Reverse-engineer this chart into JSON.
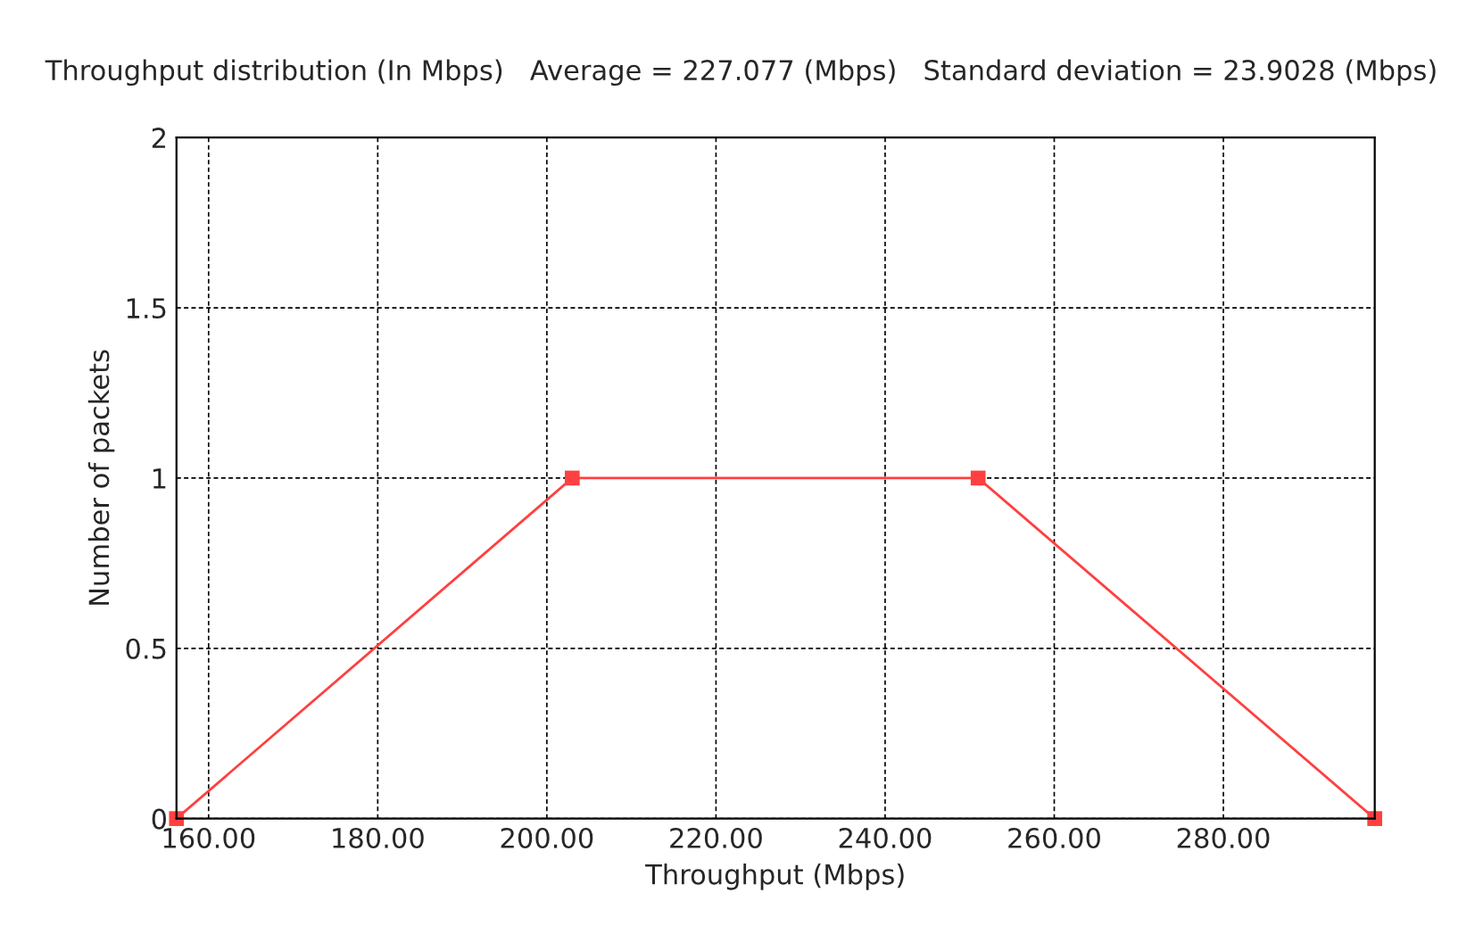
{
  "chart_data": {
    "type": "line",
    "title": "Throughput distribution (In Mbps)   Average = 227.077 (Mbps)   Standard deviation = 23.9028 (Mbps)",
    "xlabel": "Throughput (Mbps)",
    "ylabel": "Number of packets",
    "x": [
      156.2,
      203.0,
      251.0,
      297.9
    ],
    "series": [
      {
        "color": "#ff4040",
        "values": [
          0,
          1,
          1,
          0
        ]
      }
    ],
    "xlim": [
      156.2,
      297.9
    ],
    "xticks": [
      {
        "value": 160,
        "label": "160.00"
      },
      {
        "value": 180,
        "label": "180.00"
      },
      {
        "value": 200,
        "label": "200.00"
      },
      {
        "value": 220,
        "label": "220.00"
      },
      {
        "value": 240,
        "label": "240.00"
      },
      {
        "value": 260,
        "label": "260.00"
      },
      {
        "value": 280,
        "label": "280.00"
      }
    ],
    "ylim": [
      0,
      2
    ],
    "yticks": [
      0,
      0.5,
      1,
      1.5,
      2
    ],
    "grid": true,
    "marker": "square",
    "line_style": "solid"
  }
}
